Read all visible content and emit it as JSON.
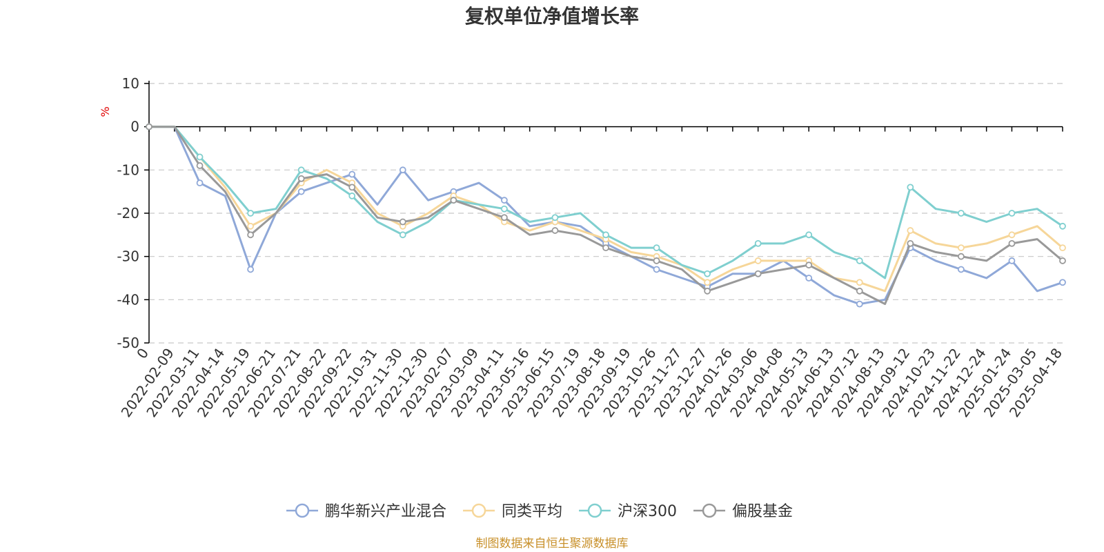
{
  "chart_data": {
    "type": "line",
    "title": "复权单位净值增长率",
    "ylabel": "%",
    "ylim": [
      -50,
      10
    ],
    "yticks": [
      10,
      0,
      -10,
      -20,
      -30,
      -40,
      -50
    ],
    "first_x_label": "0",
    "x_tick_labels": [
      "2022-02-09",
      "2022-03-11",
      "2022-04-14",
      "2022-05-19",
      "2022-06-21",
      "2022-07-21",
      "2022-08-22",
      "2022-09-22",
      "2022-10-31",
      "2022-11-30",
      "2022-12-30",
      "2023-02-07",
      "2023-03-09",
      "2023-04-11",
      "2023-05-16",
      "2023-06-15",
      "2023-07-19",
      "2023-08-18",
      "2023-09-19",
      "2023-10-26",
      "2023-11-27",
      "2023-12-27",
      "2024-01-26",
      "2024-03-06",
      "2024-04-08",
      "2024-05-13",
      "2024-06-13",
      "2024-07-12",
      "2024-08-13",
      "2024-09-12",
      "2024-10-23",
      "2024-11-22",
      "2024-12-24",
      "2025-01-24",
      "2025-03-05",
      "2025-04-18"
    ],
    "grid": true,
    "legend_position": "bottom",
    "series": [
      {
        "name": "鹏华新兴产业混合",
        "color": "#8fa8d8",
        "values": [
          0,
          -13,
          -16,
          -33,
          -20,
          -15,
          -13,
          -11,
          -18,
          -10,
          -17,
          -15,
          -13,
          -17,
          -23,
          -22,
          -23,
          -27,
          -30,
          -33,
          -35,
          -37,
          -34,
          -34,
          -31,
          -35,
          -39,
          -41,
          -40,
          -28,
          -31,
          -33,
          -35,
          -31,
          -38,
          -36
        ]
      },
      {
        "name": "同类平均",
        "color": "#f6d699",
        "values": [
          0,
          -7,
          -14,
          -23,
          -20,
          -13,
          -10,
          -13,
          -20,
          -23,
          -20,
          -16,
          -18,
          -22,
          -24,
          -22,
          -24,
          -26,
          -29,
          -30,
          -32,
          -36,
          -33,
          -31,
          -31,
          -31,
          -35,
          -36,
          -38,
          -24,
          -27,
          -28,
          -27,
          -25,
          -23,
          -28
        ]
      },
      {
        "name": "沪深300",
        "color": "#7fcfcf",
        "values": [
          0,
          -7,
          -13,
          -20,
          -19,
          -10,
          -12,
          -16,
          -22,
          -25,
          -22,
          -17,
          -18,
          -19,
          -22,
          -21,
          -20,
          -25,
          -28,
          -28,
          -32,
          -34,
          -31,
          -27,
          -27,
          -25,
          -29,
          -31,
          -35,
          -14,
          -19,
          -20,
          -22,
          -20,
          -19,
          -23
        ]
      },
      {
        "name": "偏股基金",
        "color": "#999999",
        "values": [
          0,
          -9,
          -15,
          -25,
          -20,
          -12,
          -11,
          -14,
          -21,
          -22,
          -21,
          -17,
          -19,
          -21,
          -25,
          -24,
          -25,
          -28,
          -30,
          -31,
          -33,
          -38,
          -36,
          -34,
          -33,
          -32,
          -35,
          -38,
          -41,
          -27,
          -29,
          -30,
          -31,
          -27,
          -26,
          -31
        ]
      }
    ]
  },
  "footer": {
    "source": "制图数据来自恒生聚源数据库"
  }
}
